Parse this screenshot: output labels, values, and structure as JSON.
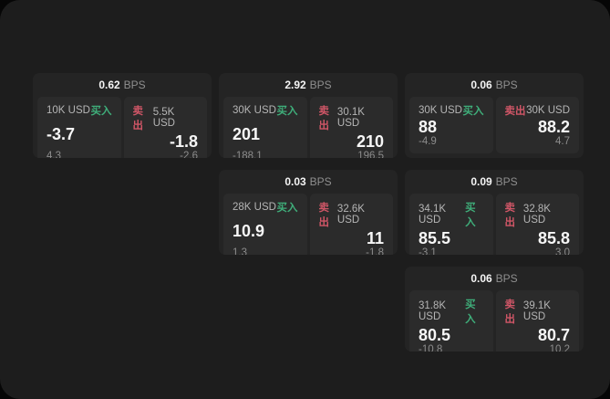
{
  "labels": {
    "bps_unit": "BPS",
    "buy_label": "买入",
    "sell_label": "卖出"
  },
  "colors": {
    "buy_green": "#3fae7a",
    "sell_red": "#d05667",
    "panel_bg": "#1d1d1d",
    "card_bg": "#242424",
    "pane_bg": "#2b2b2b"
  },
  "cards": [
    {
      "row": 1,
      "col": 1,
      "bps": "0.62",
      "buy": {
        "amount": "10K USD",
        "value": "-3.7",
        "sub": "4.3"
      },
      "sell": {
        "amount": "5.5K USD",
        "value": "-1.8",
        "sub": "-2.6"
      }
    },
    {
      "row": 1,
      "col": 2,
      "bps": "2.92",
      "buy": {
        "amount": "30K USD",
        "value": "201",
        "sub": "-188.1"
      },
      "sell": {
        "amount": "30.1K USD",
        "value": "210",
        "sub": "196.5"
      }
    },
    {
      "row": 1,
      "col": 3,
      "bps": "0.06",
      "buy": {
        "amount": "30K USD",
        "value": "88",
        "sub": "-4.9"
      },
      "sell": {
        "amount": "30K USD",
        "value": "88.2",
        "sub": "4.7"
      }
    },
    {
      "row": 2,
      "col": 2,
      "bps": "0.03",
      "buy": {
        "amount": "28K USD",
        "value": "10.9",
        "sub": "1.3"
      },
      "sell": {
        "amount": "32.6K USD",
        "value": "11",
        "sub": "-1.8"
      }
    },
    {
      "row": 2,
      "col": 3,
      "bps": "0.09",
      "buy": {
        "amount": "34.1K USD",
        "value": "85.5",
        "sub": "-3.1"
      },
      "sell": {
        "amount": "32.8K USD",
        "value": "85.8",
        "sub": "3.0"
      }
    },
    {
      "row": 3,
      "col": 3,
      "bps": "0.06",
      "buy": {
        "amount": "31.8K USD",
        "value": "80.5",
        "sub": "-10.8"
      },
      "sell": {
        "amount": "39.1K USD",
        "value": "80.7",
        "sub": "10.2"
      }
    }
  ]
}
